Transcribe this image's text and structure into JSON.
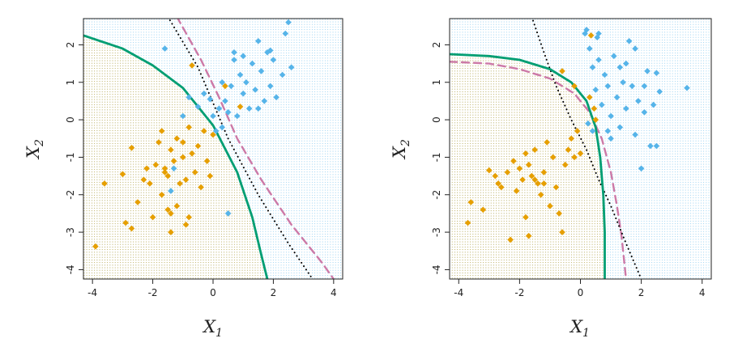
{
  "colors": {
    "class_orange": "#E69F00",
    "class_blue": "#56B4E9",
    "bayes_boundary": "#CC79A7",
    "qda_boundary": "#009E73",
    "lda_boundary": "#000000",
    "region_orange": "#E69F00",
    "region_blue": "#56B4E9"
  },
  "chart_data": [
    {
      "type": "scatter",
      "title": "",
      "xlabel": {
        "var": "X",
        "sub": "1"
      },
      "ylabel": {
        "var": "X",
        "sub": "2"
      },
      "xlim": [
        -4.3,
        4.3
      ],
      "ylim": [
        -4.25,
        2.7
      ],
      "xticks": [
        -4,
        -2,
        0,
        2,
        4
      ],
      "yticks": [
        -4,
        -3,
        -2,
        -1,
        0,
        1,
        2
      ],
      "background_dots": true,
      "boundaries": [
        {
          "style": "dashed",
          "color": "#CC79A7",
          "points": [
            [
              -1.2,
              2.75
            ],
            [
              -0.4,
              1.6
            ],
            [
              0.2,
              0.6
            ],
            [
              0.8,
              -0.5
            ],
            [
              1.6,
              -1.6
            ],
            [
              2.6,
              -2.8
            ],
            [
              3.6,
              -3.8
            ],
            [
              4.0,
              -4.25
            ]
          ]
        },
        {
          "style": "dotted",
          "color": "#000000",
          "points": [
            [
              -1.5,
              2.75
            ],
            [
              -0.5,
              1.4
            ],
            [
              0.5,
              -0.5
            ],
            [
              1.5,
              -2.0
            ],
            [
              2.5,
              -3.3
            ],
            [
              3.3,
              -4.25
            ]
          ]
        },
        {
          "style": "solid",
          "color": "#009E73",
          "points": [
            [
              -4.3,
              2.25
            ],
            [
              -3.0,
              1.9
            ],
            [
              -2.0,
              1.45
            ],
            [
              -1.0,
              0.85
            ],
            [
              0.0,
              -0.15
            ],
            [
              0.8,
              -1.4
            ],
            [
              1.3,
              -2.6
            ],
            [
              1.6,
              -3.6
            ],
            [
              1.8,
              -4.25
            ]
          ]
        }
      ],
      "series": [
        {
          "name": "",
          "color": "#E69F00",
          "points": [
            [
              -3.9,
              -3.38
            ],
            [
              -3.6,
              -1.7
            ],
            [
              -3.0,
              -1.45
            ],
            [
              -2.9,
              -2.75
            ],
            [
              -2.7,
              -2.9
            ],
            [
              -2.7,
              -0.75
            ],
            [
              -2.5,
              -2.2
            ],
            [
              -2.3,
              -1.6
            ],
            [
              -2.1,
              -1.7
            ],
            [
              -2.0,
              -2.6
            ],
            [
              -1.9,
              -1.2
            ],
            [
              -1.8,
              -0.6
            ],
            [
              -1.7,
              -0.3
            ],
            [
              -1.7,
              -2.0
            ],
            [
              -1.6,
              -1.3
            ],
            [
              -1.5,
              -1.5
            ],
            [
              -1.5,
              -2.4
            ],
            [
              -1.4,
              -2.5
            ],
            [
              -1.4,
              -3.0
            ],
            [
              -1.4,
              -0.8
            ],
            [
              -1.3,
              -1.1
            ],
            [
              -1.2,
              -0.5
            ],
            [
              -1.2,
              -2.3
            ],
            [
              -1.1,
              -1.7
            ],
            [
              -1.0,
              -0.6
            ],
            [
              -0.9,
              -1.6
            ],
            [
              -0.9,
              -2.8
            ],
            [
              -0.8,
              -0.2
            ],
            [
              -0.7,
              -0.9
            ],
            [
              -0.6,
              -1.4
            ],
            [
              -0.5,
              -0.7
            ],
            [
              -0.4,
              -1.8
            ],
            [
              -0.3,
              -0.3
            ],
            [
              -0.2,
              -1.1
            ],
            [
              -0.1,
              -1.5
            ],
            [
              0.0,
              -0.4
            ],
            [
              -1.0,
              -1.0
            ],
            [
              -1.6,
              -1.4
            ],
            [
              -2.2,
              -1.3
            ],
            [
              -0.8,
              -2.6
            ],
            [
              -0.7,
              1.45
            ],
            [
              0.4,
              0.9
            ],
            [
              0.9,
              0.35
            ]
          ]
        },
        {
          "name": "",
          "color": "#56B4E9",
          "points": [
            [
              -1.6,
              1.9
            ],
            [
              -1.0,
              0.1
            ],
            [
              -0.8,
              0.6
            ],
            [
              -0.5,
              0.35
            ],
            [
              -0.3,
              0.7
            ],
            [
              -0.1,
              0.55
            ],
            [
              0.0,
              0.1
            ],
            [
              0.1,
              -0.3
            ],
            [
              0.2,
              0.3
            ],
            [
              0.3,
              1.0
            ],
            [
              0.4,
              0.5
            ],
            [
              0.5,
              0.2
            ],
            [
              0.6,
              0.9
            ],
            [
              0.7,
              1.6
            ],
            [
              0.8,
              0.1
            ],
            [
              0.9,
              1.2
            ],
            [
              1.0,
              0.7
            ],
            [
              1.0,
              1.7
            ],
            [
              1.1,
              1.0
            ],
            [
              1.2,
              0.3
            ],
            [
              1.3,
              1.5
            ],
            [
              1.4,
              0.8
            ],
            [
              1.5,
              2.1
            ],
            [
              1.6,
              1.3
            ],
            [
              1.7,
              0.5
            ],
            [
              1.8,
              1.8
            ],
            [
              1.9,
              0.9
            ],
            [
              2.0,
              1.6
            ],
            [
              2.1,
              0.6
            ],
            [
              2.3,
              1.2
            ],
            [
              2.4,
              2.3
            ],
            [
              2.5,
              2.6
            ],
            [
              2.6,
              1.4
            ],
            [
              -1.3,
              -1.3
            ],
            [
              -1.4,
              -1.9
            ],
            [
              0.5,
              -2.5
            ],
            [
              0.3,
              -0.2
            ],
            [
              1.5,
              0.3
            ],
            [
              0.7,
              1.8
            ],
            [
              1.9,
              1.85
            ]
          ]
        }
      ]
    },
    {
      "type": "scatter",
      "title": "",
      "xlabel": {
        "var": "X",
        "sub": "1"
      },
      "ylabel": {
        "var": "X",
        "sub": "2"
      },
      "xlim": [
        -4.3,
        4.3
      ],
      "ylim": [
        -4.25,
        2.7
      ],
      "xticks": [
        -4,
        -2,
        0,
        2,
        4
      ],
      "yticks": [
        -4,
        -3,
        -2,
        -1,
        0,
        1,
        2
      ],
      "background_dots": true,
      "boundaries": [
        {
          "style": "dashed",
          "color": "#CC79A7",
          "points": [
            [
              -4.3,
              1.55
            ],
            [
              -3.0,
              1.5
            ],
            [
              -2.0,
              1.35
            ],
            [
              -1.0,
              1.1
            ],
            [
              -0.2,
              0.7
            ],
            [
              0.3,
              0.2
            ],
            [
              0.7,
              -0.5
            ],
            [
              1.0,
              -1.4
            ],
            [
              1.2,
              -2.3
            ],
            [
              1.35,
              -3.1
            ],
            [
              1.5,
              -4.25
            ]
          ]
        },
        {
          "style": "dotted",
          "color": "#000000",
          "points": [
            [
              -1.6,
              2.75
            ],
            [
              -1.2,
              1.8
            ],
            [
              -0.8,
              0.9
            ],
            [
              -0.3,
              0.0
            ],
            [
              0.2,
              -0.8
            ],
            [
              0.6,
              -1.6
            ],
            [
              1.0,
              -2.3
            ],
            [
              1.5,
              -3.3
            ],
            [
              2.0,
              -4.25
            ]
          ]
        },
        {
          "style": "solid",
          "color": "#009E73",
          "points": [
            [
              -4.3,
              1.75
            ],
            [
              -3.0,
              1.7
            ],
            [
              -2.0,
              1.6
            ],
            [
              -1.0,
              1.35
            ],
            [
              -0.3,
              1.0
            ],
            [
              0.2,
              0.5
            ],
            [
              0.5,
              -0.2
            ],
            [
              0.65,
              -1.0
            ],
            [
              0.75,
              -2.0
            ],
            [
              0.8,
              -3.0
            ],
            [
              0.8,
              -4.25
            ]
          ]
        }
      ],
      "series": [
        {
          "name": "",
          "color": "#E69F00",
          "points": [
            [
              -3.7,
              -2.75
            ],
            [
              -3.6,
              -2.2
            ],
            [
              -3.2,
              -2.4
            ],
            [
              -3.0,
              -1.35
            ],
            [
              -2.8,
              -1.5
            ],
            [
              -2.7,
              -1.7
            ],
            [
              -2.6,
              -1.8
            ],
            [
              -2.4,
              -1.4
            ],
            [
              -2.3,
              -3.2
            ],
            [
              -2.2,
              -1.1
            ],
            [
              -2.1,
              -1.9
            ],
            [
              -2.0,
              -1.3
            ],
            [
              -1.9,
              -1.6
            ],
            [
              -1.8,
              -2.6
            ],
            [
              -1.8,
              -0.9
            ],
            [
              -1.7,
              -1.2
            ],
            [
              -1.6,
              -1.5
            ],
            [
              -1.5,
              -1.6
            ],
            [
              -1.5,
              -0.8
            ],
            [
              -1.4,
              -1.7
            ],
            [
              -1.3,
              -2.0
            ],
            [
              -1.2,
              -1.4
            ],
            [
              -1.1,
              -0.6
            ],
            [
              -1.0,
              -2.3
            ],
            [
              -0.9,
              -1.0
            ],
            [
              -0.8,
              -1.8
            ],
            [
              -0.7,
              -2.5
            ],
            [
              -0.6,
              -3.0
            ],
            [
              -0.5,
              -1.2
            ],
            [
              -0.4,
              -0.8
            ],
            [
              -0.3,
              -0.5
            ],
            [
              -0.2,
              -1.0
            ],
            [
              -0.1,
              -0.3
            ],
            [
              0.0,
              -0.9
            ],
            [
              -1.7,
              -3.1
            ],
            [
              -1.2,
              -1.7
            ],
            [
              0.35,
              2.25
            ],
            [
              0.45,
              0.3
            ],
            [
              0.3,
              0.6
            ],
            [
              -0.6,
              1.3
            ],
            [
              -0.2,
              0.9
            ],
            [
              0.5,
              0.0
            ]
          ]
        },
        {
          "name": "",
          "color": "#56B4E9",
          "points": [
            [
              0.2,
              2.4
            ],
            [
              0.3,
              1.9
            ],
            [
              0.4,
              1.4
            ],
            [
              0.5,
              0.8
            ],
            [
              0.55,
              2.2
            ],
            [
              0.6,
              1.6
            ],
            [
              0.7,
              0.4
            ],
            [
              0.8,
              1.2
            ],
            [
              0.9,
              0.9
            ],
            [
              1.0,
              0.1
            ],
            [
              1.1,
              1.7
            ],
            [
              1.2,
              0.6
            ],
            [
              1.3,
              -0.2
            ],
            [
              1.4,
              1.0
            ],
            [
              1.5,
              0.3
            ],
            [
              1.6,
              2.1
            ],
            [
              1.7,
              0.9
            ],
            [
              1.8,
              -0.4
            ],
            [
              1.9,
              0.5
            ],
            [
              2.0,
              -1.3
            ],
            [
              2.1,
              0.2
            ],
            [
              2.2,
              1.3
            ],
            [
              2.3,
              -0.7
            ],
            [
              2.4,
              0.4
            ],
            [
              2.5,
              -0.7
            ],
            [
              2.5,
              1.25
            ],
            [
              2.6,
              0.75
            ],
            [
              3.5,
              0.85
            ],
            [
              0.25,
              -0.1
            ],
            [
              0.15,
              2.3
            ],
            [
              0.6,
              2.3
            ],
            [
              1.3,
              1.4
            ],
            [
              1.0,
              -0.5
            ],
            [
              1.8,
              1.9
            ],
            [
              2.1,
              0.9
            ],
            [
              0.9,
              -0.3
            ],
            [
              1.5,
              1.5
            ],
            [
              0.4,
              -0.3
            ]
          ]
        }
      ]
    }
  ]
}
